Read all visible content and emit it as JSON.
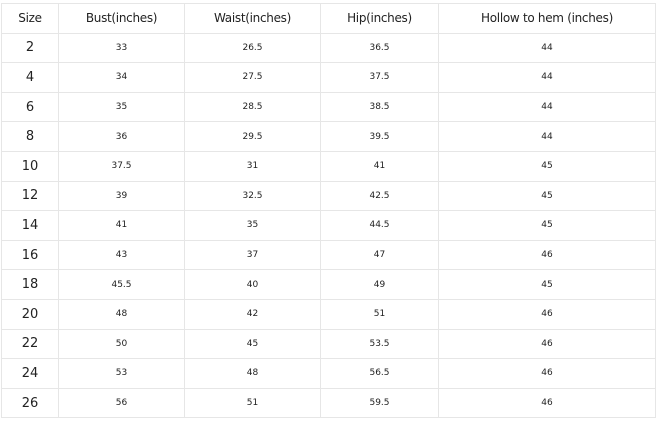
{
  "table": {
    "headers": [
      "Size",
      "Bust(inches)",
      "Waist(inches)",
      "Hip(inches)",
      "Hollow to hem (inches)"
    ],
    "rows": [
      [
        "2",
        "33",
        "26.5",
        "36.5",
        "44"
      ],
      [
        "4",
        "34",
        "27.5",
        "37.5",
        "44"
      ],
      [
        "6",
        "35",
        "28.5",
        "38.5",
        "44"
      ],
      [
        "8",
        "36",
        "29.5",
        "39.5",
        "44"
      ],
      [
        "10",
        "37.5",
        "31",
        "41",
        "45"
      ],
      [
        "12",
        "39",
        "32.5",
        "42.5",
        "45"
      ],
      [
        "14",
        "41",
        "35",
        "44.5",
        "45"
      ],
      [
        "16",
        "43",
        "37",
        "47",
        "46"
      ],
      [
        "18",
        "45.5",
        "40",
        "49",
        "45"
      ],
      [
        "20",
        "48",
        "42",
        "51",
        "46"
      ],
      [
        "22",
        "50",
        "45",
        "53.5",
        "46"
      ],
      [
        "24",
        "53",
        "48",
        "56.5",
        "46"
      ],
      [
        "26",
        "56",
        "51",
        "59.5",
        "46"
      ]
    ]
  }
}
